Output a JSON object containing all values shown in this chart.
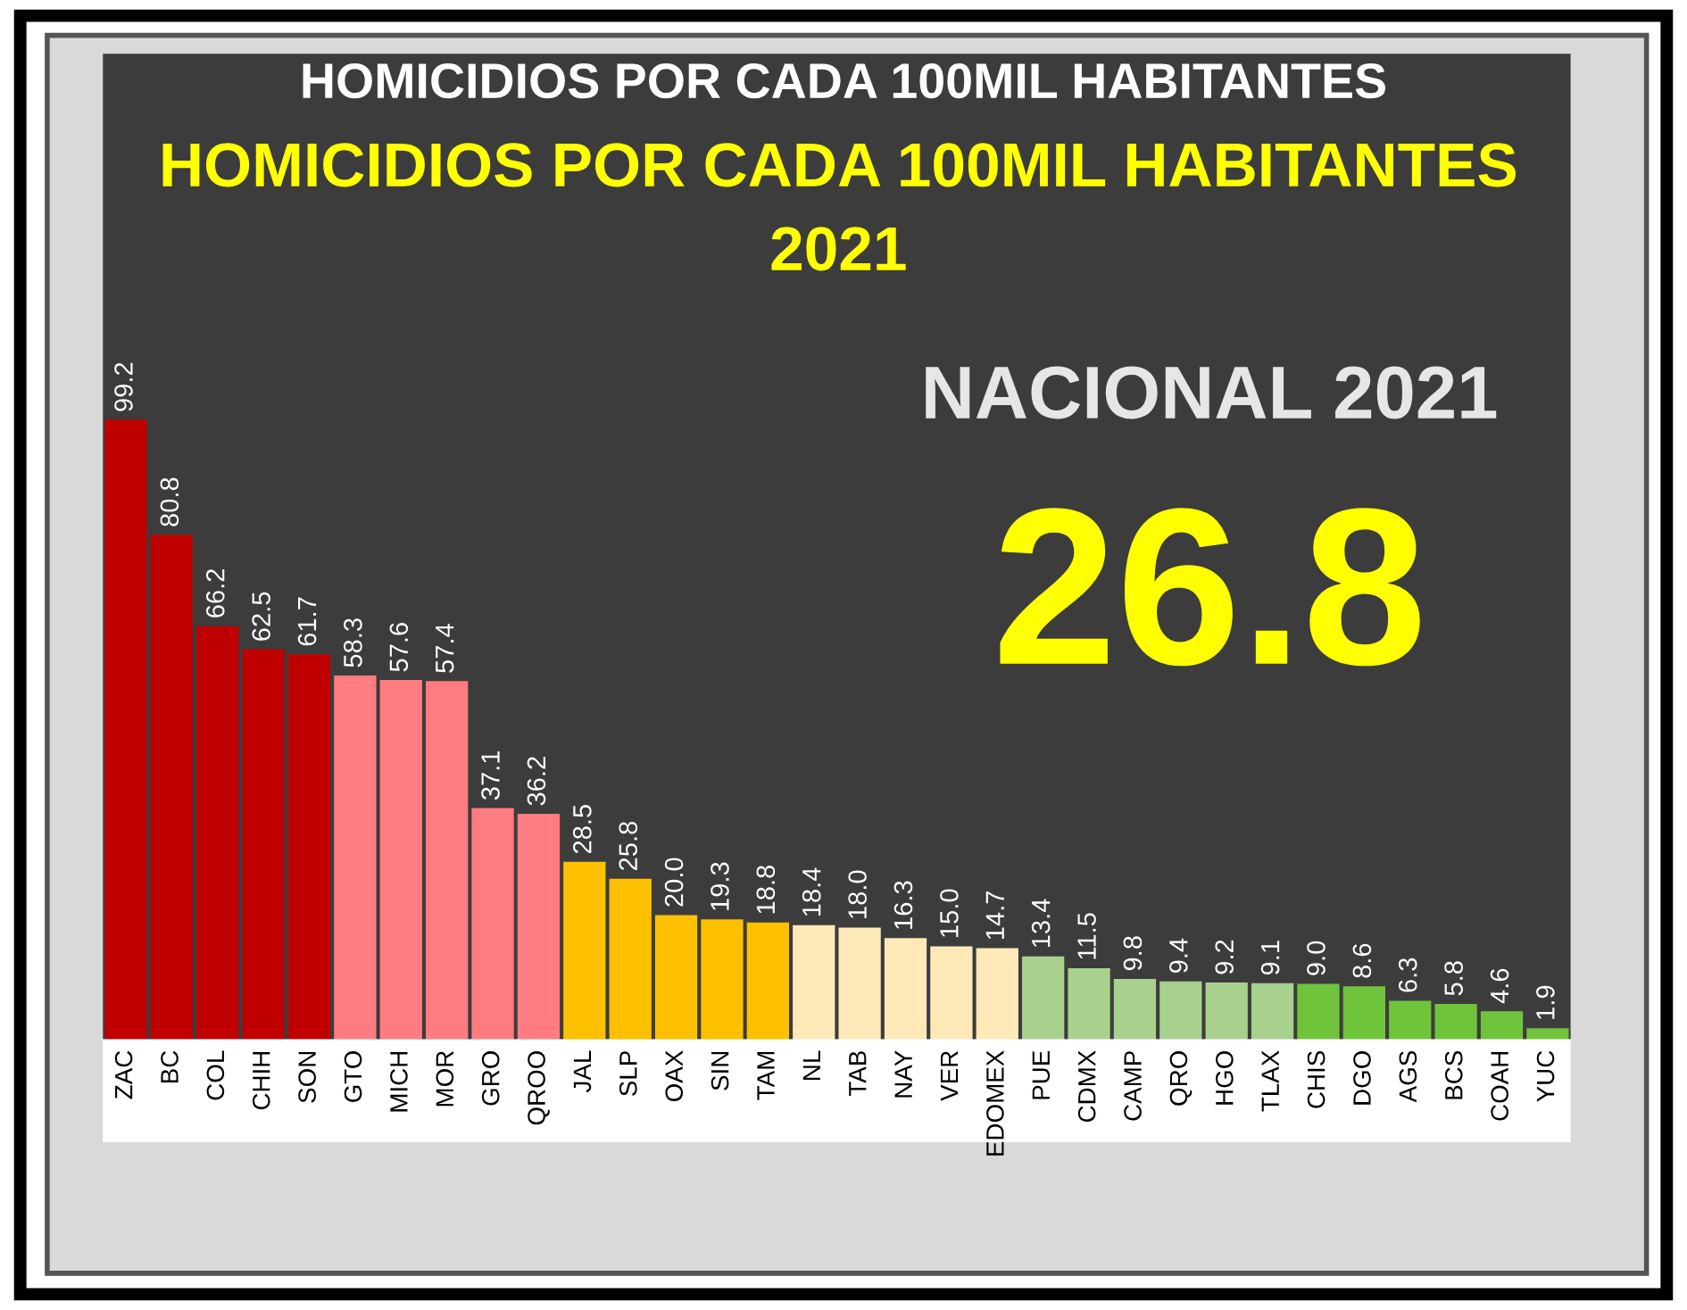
{
  "chart_data": {
    "type": "bar",
    "title": "HOMICIDIOS POR CADA 100MIL HABITANTES",
    "subtitle": "HOMICIDIOS POR CADA 100MIL HABITANTES\n2021",
    "categories": [
      "ZAC",
      "BC",
      "COL",
      "CHIH",
      "SON",
      "GTO",
      "MICH",
      "MOR",
      "GRO",
      "QROO",
      "JAL",
      "SLP",
      "OAX",
      "SIN",
      "TAM",
      "NL",
      "TAB",
      "NAY",
      "VER",
      "EDOMEX",
      "PUE",
      "CDMX",
      "CAMP",
      "QRO",
      "HGO",
      "TLAX",
      "CHIS",
      "DGO",
      "AGS",
      "BCS",
      "COAH",
      "YUC"
    ],
    "values": [
      99.2,
      80.8,
      66.2,
      62.5,
      61.7,
      58.3,
      57.6,
      57.4,
      37.1,
      36.2,
      28.5,
      25.8,
      20.0,
      19.3,
      18.8,
      18.4,
      18.0,
      16.3,
      15.0,
      14.7,
      13.4,
      11.5,
      9.8,
      9.4,
      9.2,
      9.1,
      9.0,
      8.6,
      6.3,
      5.8,
      4.6,
      1.9
    ],
    "value_labels": [
      "99.2",
      "80.8",
      "66.2",
      "62.5",
      "61.7",
      "58.3",
      "57.6",
      "57.4",
      "37.1",
      "36.2",
      "28.5",
      "25.8",
      "20.0",
      "19.3",
      "18.8",
      "18.4",
      "18.0",
      "16.3",
      "15.0",
      "14.7",
      "13.4",
      "11.5",
      "9.8",
      "9.4",
      "9.2",
      "9.1",
      "9.0",
      "8.6",
      "6.3",
      "5.8",
      "4.6",
      "1.9"
    ],
    "colors": [
      "#c00000",
      "#c00000",
      "#c00000",
      "#c00000",
      "#c00000",
      "#ff7c80",
      "#ff7c80",
      "#ff7c80",
      "#ff7c80",
      "#ff7c80",
      "#ffc000",
      "#ffc000",
      "#ffc000",
      "#ffc000",
      "#ffc000",
      "#ffe9b8",
      "#ffe9b8",
      "#ffe9b8",
      "#ffe9b8",
      "#ffe9b8",
      "#a9d18e",
      "#a9d18e",
      "#a9d18e",
      "#a9d18e",
      "#a9d18e",
      "#a9d18e",
      "#70c43c",
      "#70c43c",
      "#70c43c",
      "#70c43c",
      "#70c43c",
      "#70c43c"
    ],
    "annotations": [
      "NACIONAL 2021",
      "26.8"
    ]
  }
}
